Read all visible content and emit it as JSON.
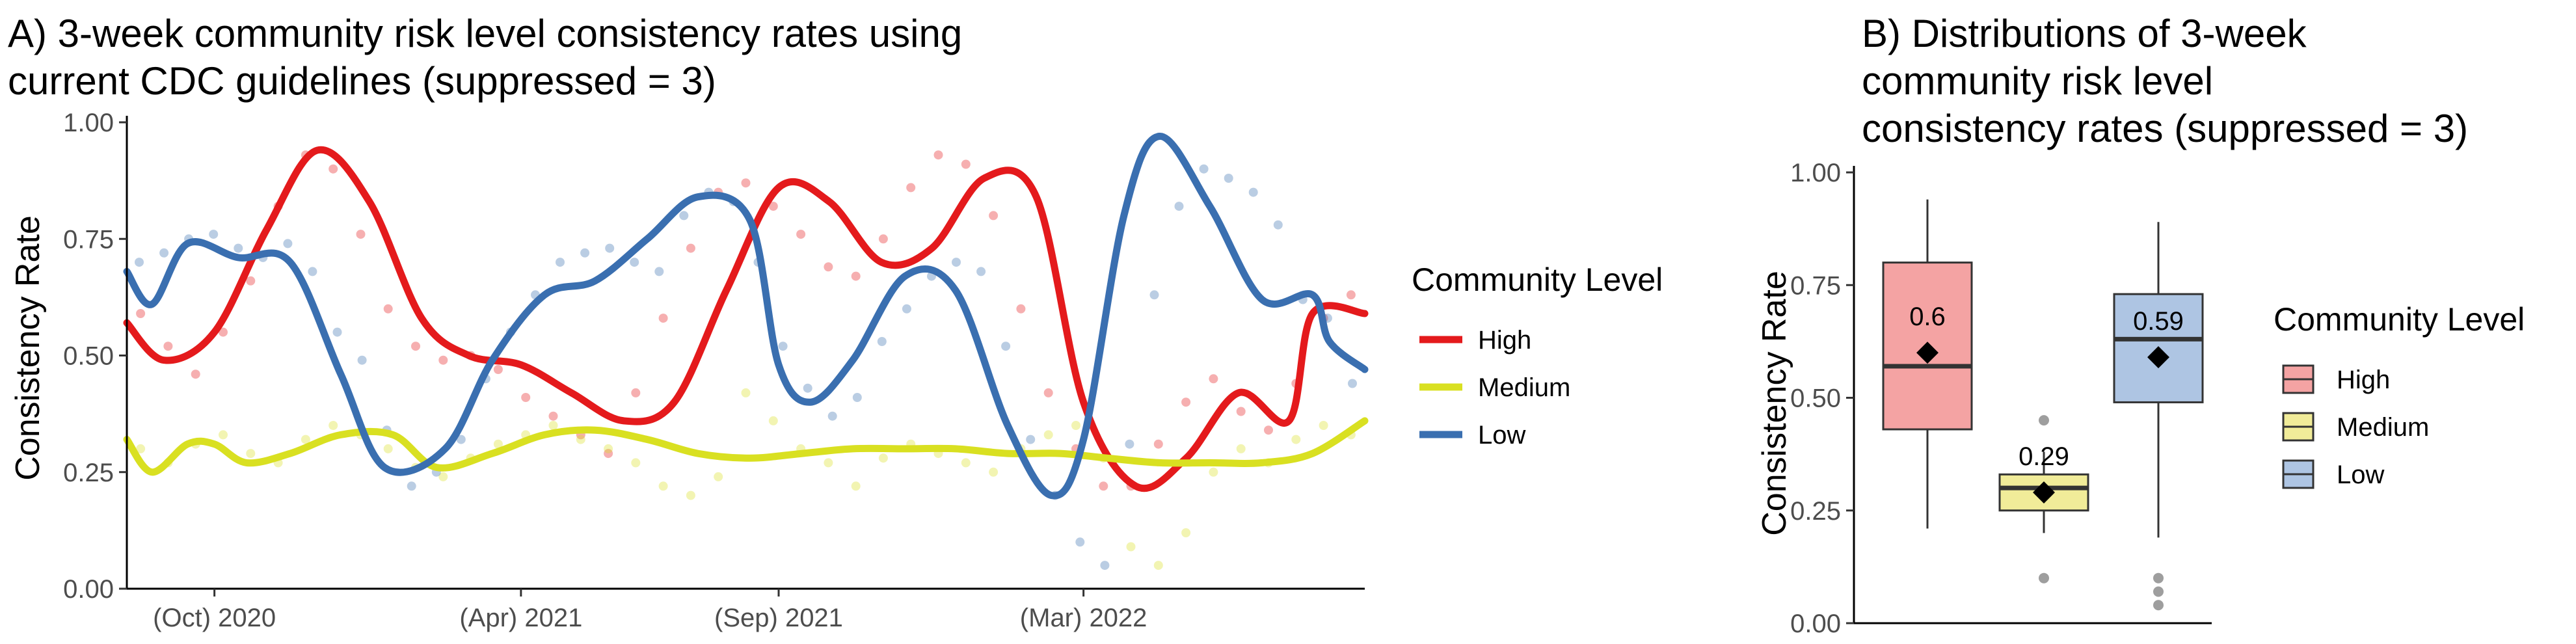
{
  "colors": {
    "High": "#e41a1c",
    "Medium": "#d9e021",
    "Low": "#3a6fb0",
    "High_fill": "#f4a3a3",
    "Medium_fill": "#f1ec99",
    "Low_fill": "#aec5e3"
  },
  "chart_data": [
    {
      "type": "line",
      "title_lines": [
        "A) 3-week community risk level consistency rates using",
        "current CDC guidelines (suppressed = 3)"
      ],
      "xlabel": "",
      "ylabel": "Consistency Rate",
      "ylim": [
        0,
        1
      ],
      "yticks": [
        "0.00",
        "0.25",
        "0.50",
        "0.75",
        "1.00"
      ],
      "xlim": [
        "2020-08-10",
        "2022-08-15"
      ],
      "xticks": [
        {
          "date": "2020-10-01",
          "label": "(Oct) 2020"
        },
        {
          "date": "2021-04-01",
          "label": "(Apr) 2021"
        },
        {
          "date": "2021-09-01",
          "label": "(Sep) 2021"
        },
        {
          "date": "2022-03-01",
          "label": "(Mar) 2022"
        }
      ],
      "grid": false,
      "legend": {
        "title": "Community Level",
        "position": "right",
        "entries": [
          "High",
          "Medium",
          "Low"
        ]
      },
      "series": [
        {
          "name": "High",
          "x": [
            "2020-08-10",
            "2020-09-01",
            "2020-10-01",
            "2020-11-01",
            "2020-12-01",
            "2021-01-01",
            "2021-02-01",
            "2021-03-01",
            "2021-04-01",
            "2021-05-01",
            "2021-06-01",
            "2021-07-01",
            "2021-08-01",
            "2021-09-01",
            "2021-10-01",
            "2021-11-01",
            "2021-12-01",
            "2022-01-01",
            "2022-02-01",
            "2022-03-01",
            "2022-04-01",
            "2022-05-01",
            "2022-06-01",
            "2022-07-01",
            "2022-07-15",
            "2022-08-15"
          ],
          "y": [
            0.57,
            0.49,
            0.55,
            0.77,
            0.94,
            0.83,
            0.58,
            0.5,
            0.48,
            0.42,
            0.36,
            0.4,
            0.64,
            0.86,
            0.83,
            0.7,
            0.73,
            0.88,
            0.84,
            0.4,
            0.22,
            0.28,
            0.42,
            0.36,
            0.59,
            0.59
          ],
          "points": [
            0.59,
            0.52,
            0.46,
            0.55,
            0.66,
            0.82,
            0.93,
            0.9,
            0.76,
            0.6,
            0.52,
            0.49,
            0.5,
            0.47,
            0.41,
            0.37,
            0.33,
            0.29,
            0.42,
            0.58,
            0.73,
            0.85,
            0.87,
            0.82,
            0.76,
            0.69,
            0.67,
            0.75,
            0.86,
            0.93,
            0.91,
            0.8,
            0.6,
            0.42,
            0.3,
            0.22,
            0.22,
            0.31,
            0.4,
            0.45,
            0.38,
            0.34,
            0.44,
            0.58,
            0.63
          ]
        },
        {
          "name": "Medium",
          "x": [
            "2020-08-10",
            "2020-08-25",
            "2020-09-15",
            "2020-10-01",
            "2020-10-20",
            "2020-11-15",
            "2020-12-15",
            "2021-01-15",
            "2021-02-10",
            "2021-03-15",
            "2021-04-15",
            "2021-05-15",
            "2021-06-15",
            "2021-07-15",
            "2021-08-15",
            "2021-09-15",
            "2021-10-15",
            "2021-11-15",
            "2021-12-15",
            "2022-01-15",
            "2022-02-15",
            "2022-03-15",
            "2022-04-15",
            "2022-05-15",
            "2022-06-15",
            "2022-07-15",
            "2022-08-15"
          ],
          "y": [
            0.32,
            0.25,
            0.31,
            0.31,
            0.27,
            0.29,
            0.33,
            0.33,
            0.26,
            0.29,
            0.33,
            0.34,
            0.32,
            0.29,
            0.28,
            0.29,
            0.3,
            0.3,
            0.3,
            0.29,
            0.29,
            0.28,
            0.27,
            0.27,
            0.27,
            0.29,
            0.36
          ],
          "points": [
            0.3,
            0.27,
            0.31,
            0.33,
            0.29,
            0.27,
            0.32,
            0.35,
            0.33,
            0.3,
            0.26,
            0.24,
            0.28,
            0.31,
            0.33,
            0.35,
            0.32,
            0.3,
            0.27,
            0.22,
            0.2,
            0.24,
            0.42,
            0.36,
            0.3,
            0.27,
            0.22,
            0.28,
            0.31,
            0.29,
            0.27,
            0.25,
            0.3,
            0.33,
            0.35,
            0.28,
            0.09,
            0.05,
            0.12,
            0.25,
            0.3,
            0.27,
            0.32,
            0.35,
            0.33
          ]
        },
        {
          "name": "Low",
          "x": [
            "2020-08-10",
            "2020-08-25",
            "2020-09-15",
            "2020-10-15",
            "2020-11-15",
            "2020-12-15",
            "2021-01-10",
            "2021-02-15",
            "2021-03-15",
            "2021-04-15",
            "2021-05-15",
            "2021-06-15",
            "2021-07-15",
            "2021-08-15",
            "2021-09-01",
            "2021-09-20",
            "2021-10-15",
            "2021-11-15",
            "2021-12-15",
            "2022-01-15",
            "2022-02-10",
            "2022-03-01",
            "2022-03-25",
            "2022-04-15",
            "2022-05-15",
            "2022-06-15",
            "2022-07-15",
            "2022-07-25",
            "2022-08-15"
          ],
          "y": [
            0.68,
            0.61,
            0.74,
            0.71,
            0.7,
            0.46,
            0.26,
            0.3,
            0.49,
            0.63,
            0.66,
            0.75,
            0.84,
            0.79,
            0.48,
            0.4,
            0.49,
            0.67,
            0.64,
            0.35,
            0.2,
            0.32,
            0.8,
            0.97,
            0.82,
            0.62,
            0.63,
            0.53,
            0.47
          ],
          "points": [
            0.7,
            0.72,
            0.75,
            0.76,
            0.73,
            0.71,
            0.74,
            0.68,
            0.55,
            0.49,
            0.34,
            0.22,
            0.25,
            0.32,
            0.45,
            0.55,
            0.63,
            0.7,
            0.72,
            0.73,
            0.7,
            0.68,
            0.8,
            0.85,
            0.83,
            0.7,
            0.52,
            0.43,
            0.37,
            0.41,
            0.53,
            0.6,
            0.67,
            0.7,
            0.68,
            0.52,
            0.32,
            0.2,
            0.1,
            0.05,
            0.31,
            0.63,
            0.82,
            0.9,
            0.88,
            0.85,
            0.78,
            0.62,
            0.58,
            0.44
          ]
        }
      ]
    },
    {
      "type": "box",
      "title_lines": [
        "B) Distributions of 3-week",
        "community risk level",
        "consistency rates (suppressed = 3)"
      ],
      "xlabel": "",
      "ylabel": "Consistency Rate",
      "ylim": [
        0,
        1
      ],
      "yticks": [
        "0.00",
        "0.25",
        "0.50",
        "0.75",
        "1.00"
      ],
      "grid": false,
      "legend": {
        "title": "Community Level",
        "position": "right",
        "entries": [
          "High",
          "Medium",
          "Low"
        ]
      },
      "boxes": [
        {
          "name": "High",
          "min": 0.21,
          "q1": 0.43,
          "median": 0.57,
          "q3": 0.8,
          "max": 0.94,
          "mean": 0.6,
          "mean_label": "0.6",
          "outliers": []
        },
        {
          "name": "Medium",
          "min": 0.2,
          "q1": 0.25,
          "median": 0.3,
          "q3": 0.33,
          "max": 0.38,
          "mean": 0.29,
          "mean_label": "0.29",
          "outliers": [
            0.45,
            0.1
          ]
        },
        {
          "name": "Low",
          "min": 0.19,
          "q1": 0.49,
          "median": 0.63,
          "q3": 0.73,
          "max": 0.89,
          "mean": 0.59,
          "mean_label": "0.59",
          "outliers": [
            0.1,
            0.07,
            0.04
          ]
        }
      ]
    }
  ]
}
